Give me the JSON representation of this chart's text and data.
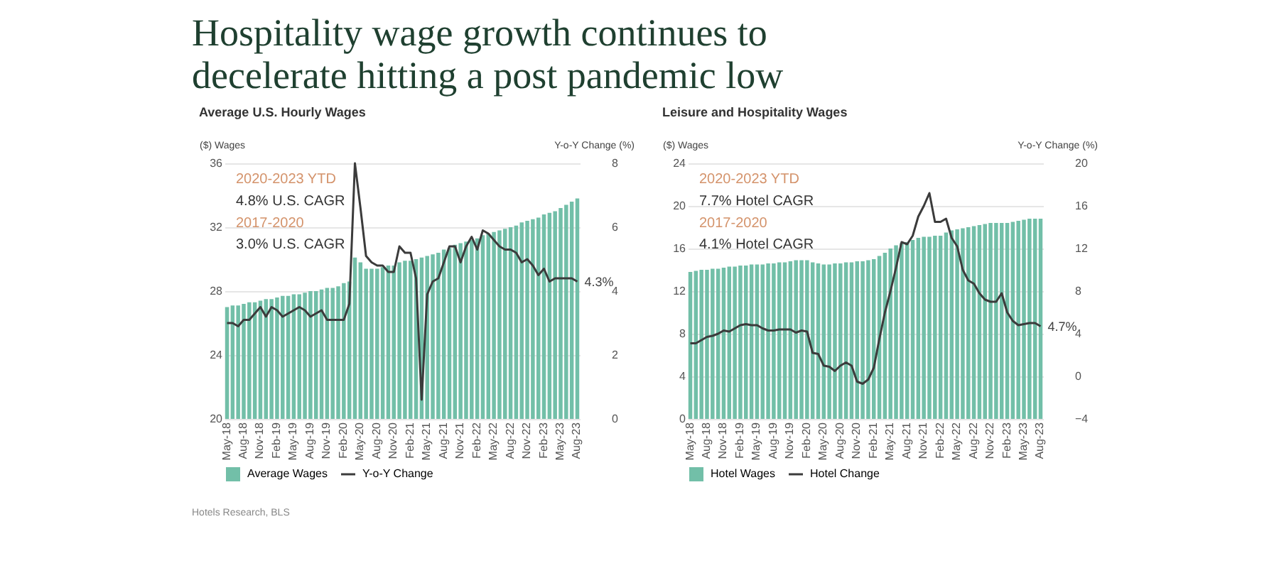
{
  "chart_data": [
    {
      "type": "bar",
      "title": "Hospitality wage growth continues to decelerate hitting a post pandemic low",
      "subtitle": "Average U.S. Hourly Wages",
      "ylabel": "($) Wages",
      "y2label": "Y-o-Y Change (%)",
      "categories": [
        "May-18",
        null,
        null,
        "Aug-18",
        null,
        null,
        "Nov-18",
        null,
        null,
        "Feb-19",
        null,
        null,
        "May-19",
        null,
        null,
        "Aug-19",
        null,
        null,
        "Nov-19",
        null,
        null,
        "Feb-20",
        null,
        null,
        "May-20",
        null,
        null,
        "Aug-20",
        null,
        null,
        "Nov-20",
        null,
        null,
        "Feb-21",
        null,
        null,
        "May-21",
        null,
        null,
        "Aug-21",
        null,
        null,
        "Nov-21",
        null,
        null,
        "Feb-22",
        null,
        null,
        "May-22",
        null,
        null,
        "Aug-22",
        null,
        null,
        "Nov-22",
        null,
        null,
        "Feb-23",
        null,
        null,
        "May-23",
        null,
        null,
        "Aug-23"
      ],
      "series": [
        {
          "name": "Average Wages",
          "type": "bar",
          "color": "#72bfa8",
          "values": [
            27.0,
            27.1,
            27.1,
            27.2,
            27.3,
            27.3,
            27.4,
            27.5,
            27.5,
            27.6,
            27.7,
            27.7,
            27.8,
            27.8,
            27.9,
            28.0,
            28.0,
            28.1,
            28.2,
            28.2,
            28.3,
            28.5,
            28.6,
            30.1,
            29.8,
            29.4,
            29.4,
            29.4,
            29.5,
            29.6,
            29.6,
            29.8,
            29.9,
            29.9,
            30.0,
            30.1,
            30.2,
            30.3,
            30.4,
            30.6,
            30.7,
            30.9,
            31.0,
            31.1,
            31.2,
            31.3,
            31.5,
            31.6,
            31.7,
            31.8,
            31.9,
            32.0,
            32.1,
            32.3,
            32.4,
            32.5,
            32.6,
            32.8,
            32.9,
            33.0,
            33.2,
            33.4,
            33.6,
            33.8
          ]
        },
        {
          "name": "Y-o-Y Change",
          "type": "line",
          "axis": "y2",
          "color": "#3b3b3b",
          "values": [
            3.0,
            3.0,
            2.9,
            3.1,
            3.1,
            3.3,
            3.5,
            3.2,
            3.5,
            3.4,
            3.2,
            3.3,
            3.4,
            3.5,
            3.4,
            3.2,
            3.3,
            3.4,
            3.1,
            3.1,
            3.1,
            3.1,
            3.6,
            8.0,
            6.6,
            5.1,
            4.9,
            4.8,
            4.8,
            4.6,
            4.6,
            5.4,
            5.2,
            5.2,
            4.4,
            0.6,
            3.9,
            4.3,
            4.4,
            4.9,
            5.4,
            5.4,
            4.9,
            5.4,
            5.7,
            5.3,
            5.9,
            5.8,
            5.6,
            5.4,
            5.3,
            5.3,
            5.2,
            4.9,
            5.0,
            4.8,
            4.5,
            4.7,
            4.3,
            4.4,
            4.4,
            4.4,
            4.4,
            4.3
          ],
          "value_labels": [
            null,
            null,
            null,
            null,
            null,
            null,
            null,
            null,
            null,
            null,
            null,
            null,
            null,
            null,
            null,
            null,
            null,
            null,
            null,
            null,
            null,
            null,
            null,
            null,
            null,
            null,
            null,
            null,
            null,
            null,
            null,
            null,
            null,
            null,
            null,
            null,
            null,
            null,
            null,
            null,
            null,
            null,
            null,
            null,
            null,
            null,
            null,
            null,
            null,
            null,
            null,
            null,
            null,
            null,
            null,
            null,
            null,
            null,
            null,
            null,
            null,
            null,
            null,
            "4.3%"
          ]
        }
      ],
      "ylim": [
        20,
        36
      ],
      "yticks": [
        20,
        24,
        28,
        32,
        36
      ],
      "y2lim": [
        0,
        8
      ],
      "y2ticks": [
        0,
        2,
        4,
        6,
        8
      ],
      "grid": "y",
      "legend": "bottom",
      "annotations": [
        "2020-2023 YTD",
        "4.8% U.S. CAGR",
        "2017-2020",
        "3.0% U.S. CAGR",
        "Hotels Research, BLS"
      ]
    },
    {
      "type": "bar",
      "subtitle": "Leisure and Hospitality Wages",
      "ylabel": "($) Wages",
      "y2label": "Y-o-Y Change (%)",
      "categories": [
        "May-18",
        null,
        null,
        "Aug-18",
        null,
        null,
        "Nov-18",
        null,
        null,
        "Feb-19",
        null,
        null,
        "May-19",
        null,
        null,
        "Aug-19",
        null,
        null,
        "Nov-19",
        null,
        null,
        "Feb-20",
        null,
        null,
        "May-20",
        null,
        null,
        "Aug-20",
        null,
        null,
        "Nov-20",
        null,
        null,
        "Feb-21",
        null,
        null,
        "May-21",
        null,
        null,
        "Aug-21",
        null,
        null,
        "Nov-21",
        null,
        null,
        "Feb-22",
        null,
        null,
        "May-22",
        null,
        null,
        "Aug-22",
        null,
        null,
        "Nov-22",
        null,
        null,
        "Feb-23",
        null,
        null,
        "May-23",
        null,
        null,
        "Aug-23"
      ],
      "series": [
        {
          "name": "Hotel Wages",
          "type": "bar",
          "color": "#72bfa8",
          "values": [
            13.8,
            13.9,
            14.0,
            14.0,
            14.1,
            14.1,
            14.2,
            14.3,
            14.3,
            14.4,
            14.4,
            14.5,
            14.5,
            14.5,
            14.6,
            14.6,
            14.7,
            14.7,
            14.8,
            14.9,
            14.9,
            14.9,
            14.7,
            14.6,
            14.5,
            14.5,
            14.6,
            14.6,
            14.7,
            14.7,
            14.8,
            14.8,
            14.9,
            15.0,
            15.3,
            15.6,
            16.0,
            16.3,
            16.5,
            16.6,
            16.8,
            17.0,
            17.1,
            17.1,
            17.2,
            17.2,
            17.5,
            17.7,
            17.8,
            17.9,
            18.0,
            18.1,
            18.2,
            18.3,
            18.4,
            18.4,
            18.4,
            18.4,
            18.5,
            18.6,
            18.7,
            18.8,
            18.8,
            18.8
          ]
        },
        {
          "name": "Hotel Change",
          "type": "line",
          "axis": "y2",
          "color": "#3b3b3b",
          "values": [
            3.1,
            3.1,
            3.4,
            3.7,
            3.8,
            4.0,
            4.3,
            4.2,
            4.5,
            4.8,
            4.9,
            4.8,
            4.8,
            4.5,
            4.3,
            4.3,
            4.4,
            4.4,
            4.4,
            4.1,
            4.3,
            4.2,
            2.2,
            2.1,
            1.0,
            0.9,
            0.5,
            1.0,
            1.3,
            1.0,
            -0.5,
            -0.7,
            -0.3,
            0.8,
            3.5,
            6.0,
            8.0,
            10.2,
            12.6,
            12.4,
            13.2,
            15.0,
            16.0,
            17.2,
            14.5,
            14.5,
            14.8,
            13.0,
            12.2,
            10.0,
            9.0,
            8.7,
            7.8,
            7.2,
            7.0,
            7.0,
            7.8,
            6.0,
            5.2,
            4.8,
            4.9,
            5.0,
            5.0,
            4.7
          ],
          "value_labels": [
            null,
            null,
            null,
            null,
            null,
            null,
            null,
            null,
            null,
            null,
            null,
            null,
            null,
            null,
            null,
            null,
            null,
            null,
            null,
            null,
            null,
            null,
            null,
            null,
            null,
            null,
            null,
            null,
            null,
            null,
            null,
            null,
            null,
            null,
            null,
            null,
            null,
            null,
            null,
            null,
            null,
            null,
            null,
            null,
            null,
            null,
            null,
            null,
            null,
            null,
            null,
            null,
            null,
            null,
            null,
            null,
            null,
            null,
            null,
            null,
            null,
            null,
            null,
            "4.7%"
          ]
        }
      ],
      "ylim": [
        0,
        24
      ],
      "yticks": [
        0,
        4,
        8,
        12,
        16,
        20,
        24
      ],
      "y2lim": [
        -4,
        20
      ],
      "y2ticks": [
        -4,
        0,
        4,
        8,
        12,
        16,
        20
      ],
      "grid": "y",
      "legend": "bottom",
      "annotations": [
        "2020-2023 YTD",
        "7.7% Hotel CAGR",
        "2017-2020",
        "4.1% Hotel CAGR"
      ]
    }
  ]
}
